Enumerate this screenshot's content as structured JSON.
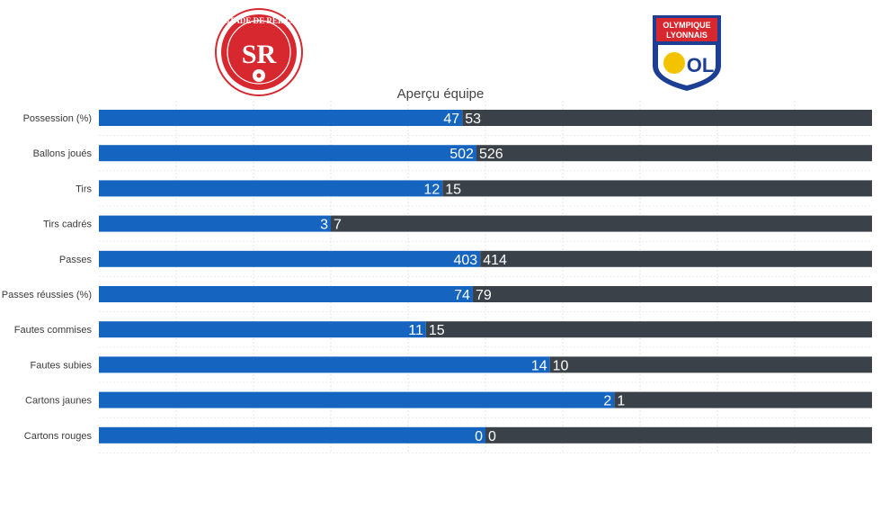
{
  "teams": {
    "home": {
      "name": "Stade de Reims",
      "logo_text": "STADE DE REIMS",
      "logo_monogram": "SR"
    },
    "away": {
      "name": "Olympique Lyonnais",
      "logo_text_1": "OLYMPIQUE",
      "logo_text_2": "LYONNAIS",
      "logo_monogram": "OL"
    }
  },
  "colors": {
    "home_bar": "#1565c0",
    "away_bar": "#3a4149",
    "home_logo": "#d7282f",
    "away_logo_blue": "#1c3f94",
    "away_logo_red": "#d7282f"
  },
  "chart_data": {
    "type": "bar",
    "title": "Aperçu équipe",
    "orientation": "horizontal-stacked-proportional",
    "categories": [
      "Possession (%)",
      "Ballons joués",
      "Tirs",
      "Tirs cadrés",
      "Passes",
      "Passes réussies (%)",
      "Fautes commises",
      "Fautes subies",
      "Cartons jaunes",
      "Cartons rouges"
    ],
    "series": [
      {
        "values": [
          47,
          502,
          12,
          3,
          403,
          74,
          11,
          14,
          2,
          0
        ]
      },
      {
        "values": [
          53,
          526,
          15,
          7,
          414,
          79,
          15,
          10,
          1,
          0
        ]
      }
    ],
    "grid": true
  }
}
